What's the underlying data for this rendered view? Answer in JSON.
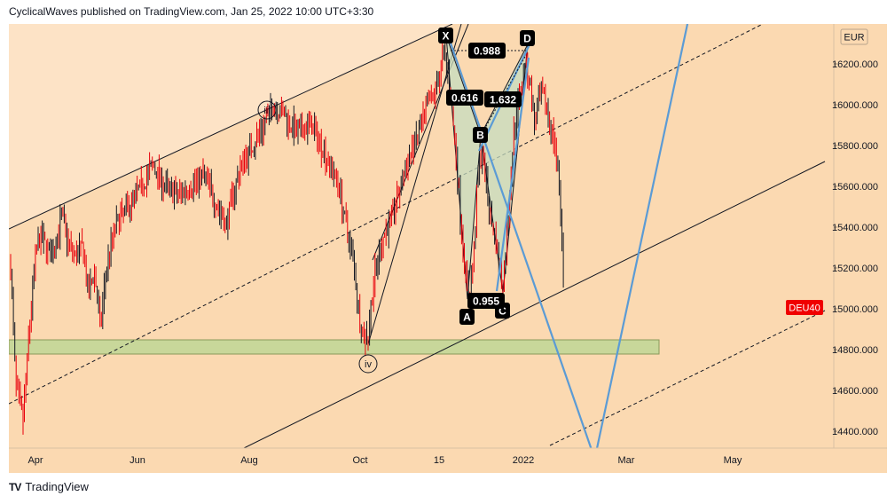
{
  "header": {
    "text": "CyclicalWaves published on TradingView.com, Jan 25, 2022 10:00 UTC+3:30"
  },
  "footer": {
    "brand": "TradingView",
    "logo_text": "TV"
  },
  "chart_data": {
    "type": "candlestick",
    "symbol": "DEU40",
    "currency": "EUR",
    "last_price": 15000,
    "x_ticks": [
      "Apr",
      "Jun",
      "Aug",
      "Oct",
      "15",
      "2022",
      "Mar",
      "May"
    ],
    "y_ticks": [
      "16200.000",
      "16000.000",
      "15800.000",
      "15600.000",
      "15400.000",
      "15200.000",
      "15000.000",
      "14800.000",
      "14600.000",
      "14400.000"
    ],
    "ylim": [
      14300,
      16400
    ],
    "pattern_points": [
      {
        "label": "X",
        "value": 16300
      },
      {
        "label": "A",
        "value": 15050
      },
      {
        "label": "B",
        "value": 15800
      },
      {
        "label": "C",
        "value": 15060
      },
      {
        "label": "D",
        "value": 16280
      }
    ],
    "pattern_ratios": [
      "0.988",
      "0.616",
      "1.632",
      "0.955"
    ],
    "wave_labels": [
      "iii",
      "iv"
    ],
    "support_zone": [
      14790,
      14860
    ],
    "colors": {
      "background": "#fbd9b1",
      "channel_upper_fill": "#fde3c6",
      "candle": "#e8000b",
      "candle_dark": "#131722",
      "support_zone": "#c8d79a",
      "harmonic_fill": "#c5dcc0",
      "projection_line": "#5b9bd5",
      "label_bg": "#000000",
      "price_tag": "#f00000"
    }
  }
}
